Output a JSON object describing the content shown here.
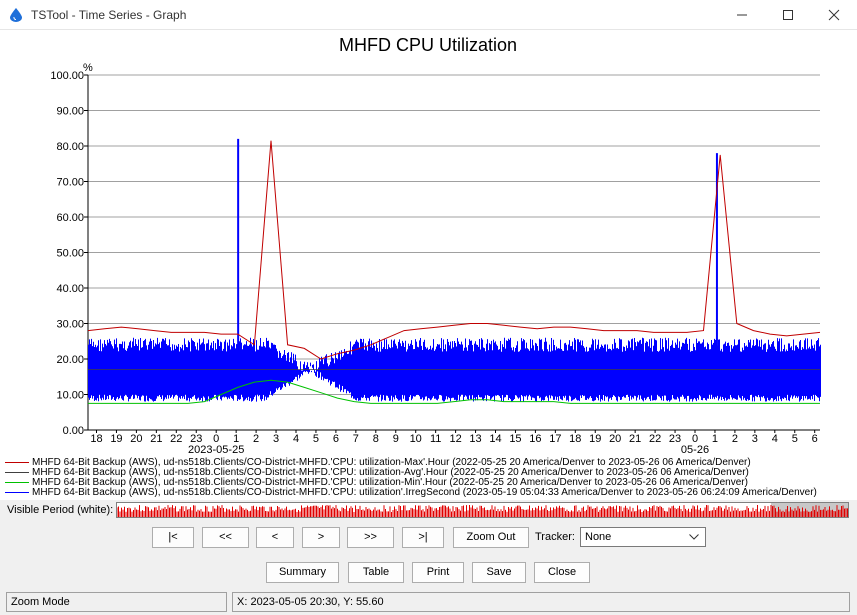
{
  "window": {
    "title": "TSTool - Time Series - Graph",
    "icon": "water-drop-icon"
  },
  "chart_data": {
    "type": "line",
    "title": "MHFD CPU Utilization",
    "ylabel": "%",
    "xlabel": "",
    "ylim": [
      0,
      100
    ],
    "y_ticks": [
      "0.00",
      "10.00",
      "20.00",
      "30.00",
      "40.00",
      "50.00",
      "60.00",
      "70.00",
      "80.00",
      "90.00",
      "100.00"
    ],
    "x_hour_ticks": [
      "18",
      "19",
      "20",
      "21",
      "22",
      "23",
      "0",
      "1",
      "2",
      "3",
      "4",
      "5",
      "6",
      "7",
      "8",
      "9",
      "10",
      "11",
      "12",
      "13",
      "14",
      "15",
      "16",
      "17",
      "18",
      "19",
      "20",
      "21",
      "22",
      "23",
      "0",
      "1",
      "2",
      "3",
      "4",
      "5",
      "6"
    ],
    "x_date_labels": [
      {
        "text": "2023-05-25",
        "at_hour_index": 6
      },
      {
        "text": "05-26",
        "at_hour_index": 30
      }
    ],
    "grid": true,
    "legend_placement": "bottom",
    "series": [
      {
        "name": "MHFD 64-Bit Backup (AWS), ud-ns518b.Clients/CO-District-MHFD.'CPU: utilization-Max'.Hour (2022-05-25 20 America/Denver to 2023-05-26 06 America/Denver)",
        "color": "#c00000",
        "values": [
          28,
          28.5,
          29,
          28.5,
          28,
          27.5,
          27.5,
          27.5,
          27,
          27,
          24,
          81.5,
          24,
          23,
          20,
          21.5,
          22.5,
          24,
          26,
          28,
          28.5,
          29,
          29.5,
          30,
          30,
          29.5,
          29,
          28.5,
          29,
          29,
          28.5,
          28,
          28,
          28,
          27.5,
          27.5,
          27.5,
          28,
          77.5,
          30,
          28,
          27,
          26.5,
          27,
          27.5
        ]
      },
      {
        "name": "MHFD 64-Bit Backup (AWS), ud-ns518b.Clients/CO-District-MHFD.'CPU: utilization-Avg'.Hour (2022-05-25 20 America/Denver to 2023-05-26 06 America/Denver)",
        "color": "#404040",
        "values": [
          17,
          17,
          17,
          17,
          17,
          17,
          17,
          17,
          17,
          17,
          17,
          17,
          17,
          17,
          17,
          17,
          17,
          17,
          17,
          17,
          17,
          17,
          17,
          17,
          17,
          17,
          17,
          17,
          17,
          17,
          17,
          17,
          17,
          17,
          17,
          17,
          17,
          17,
          17,
          17,
          17,
          17,
          17,
          17,
          17
        ]
      },
      {
        "name": "MHFD 64-Bit Backup (AWS), ud-ns518b.Clients/CO-District-MHFD.'CPU: utilization-Min'.Hour (2022-05-25 20 America/Denver to 2023-05-26 06 America/Denver)",
        "color": "#00c000",
        "values": [
          7.5,
          7.5,
          7.5,
          7.5,
          7.5,
          7.5,
          7.5,
          8,
          10,
          12,
          13.5,
          14,
          13.5,
          12,
          10.5,
          9,
          8,
          7.5,
          7.5,
          7.5,
          7.5,
          7.5,
          8,
          8.5,
          8.5,
          8,
          8,
          8,
          8,
          7.5,
          7.5,
          7.5,
          7.5,
          7.5,
          7.5,
          7.5,
          7.5,
          7.5,
          7.5,
          7.5,
          7.5,
          7.5,
          7.5,
          7.5,
          7.5
        ]
      },
      {
        "name": "MHFD 64-Bit Backup (AWS), ud-ns518b.Clients/CO-District-MHFD.'CPU: utilization'.IrregSecond (2023-05-19 05:04:33 America/Denver to 2023-05-26 06:24:09 America/Denver)",
        "color": "#0000ff",
        "band_min": 8,
        "band_max": 26,
        "spikes": [
          82,
          78
        ]
      }
    ]
  },
  "legend": {
    "rows": [
      {
        "text": "MHFD 64-Bit Backup (AWS), ud-ns518b.Clients/CO-District-MHFD.'CPU: utilization-Max'.Hour (2022-05-25 20 America/Denver to 2023-05-26 06 America/Denver)",
        "color": "#c00000"
      },
      {
        "text": "MHFD 64-Bit Backup (AWS), ud-ns518b.Clients/CO-District-MHFD.'CPU: utilization-Avg'.Hour (2022-05-25 20 America/Denver to 2023-05-26 06 America/Denver)",
        "color": "#404040"
      },
      {
        "text": "MHFD 64-Bit Backup (AWS), ud-ns518b.Clients/CO-District-MHFD.'CPU: utilization-Min'.Hour (2022-05-25 20 America/Denver to 2023-05-26 06 America/Denver)",
        "color": "#00c000"
      },
      {
        "text": "MHFD 64-Bit Backup (AWS), ud-ns518b.Clients/CO-District-MHFD.'CPU: utilization'.IrregSecond (2023-05-19 05:04:33 America/Denver to 2023-05-26 06:24:09 America/Denver)",
        "color": "#0000ff"
      }
    ]
  },
  "visible_period": {
    "label": "Visible Period (white):"
  },
  "nav_buttons": {
    "first": "|<",
    "prev_big": "<<",
    "prev": "<",
    "next": ">",
    "next_big": ">>",
    "last": ">|",
    "zoom_out": "Zoom Out"
  },
  "tracker": {
    "label": "Tracker:",
    "value": "None"
  },
  "action_buttons": {
    "summary": "Summary",
    "table": "Table",
    "print": "Print",
    "save": "Save",
    "close": "Close"
  },
  "status": {
    "mode": "Zoom Mode",
    "coords": "X:  2023-05-05 20:30,  Y:  55.60"
  }
}
